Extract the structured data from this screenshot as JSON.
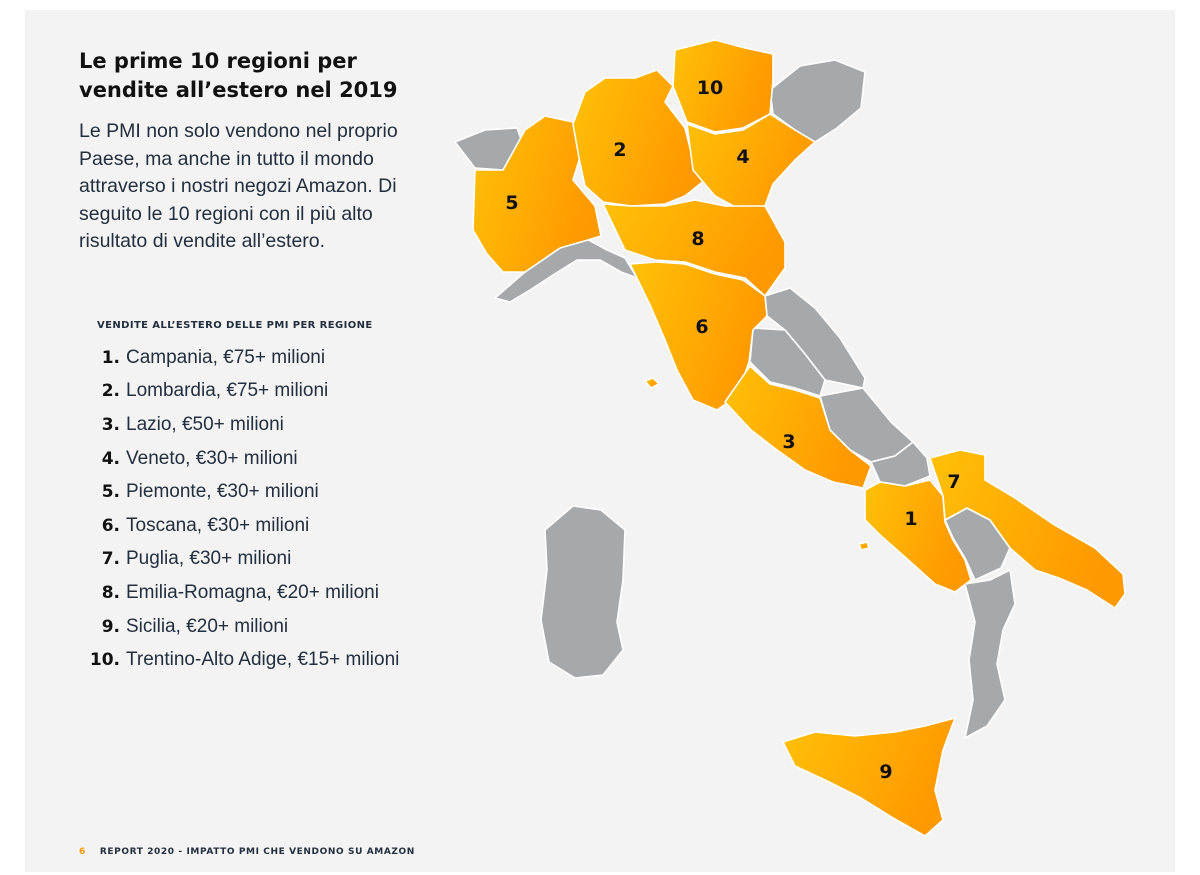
{
  "title_lines": [
    "Le prime 10 regioni per",
    "vendite all’estero nel 2019"
  ],
  "intro_lines": [
    "Le PMI non solo vendono nel proprio",
    "Paese, ma anche in tutto il mondo",
    "attraverso i nostri negozi Amazon. Di",
    "seguito le 10 regioni con il più alto",
    "risultato di vendite all’estero."
  ],
  "list_heading": "VENDITE ALL’ESTERO DELLE PMI PER REGIONE",
  "ranking": [
    {
      "rank": "1.",
      "text": "Campania, €75+ milioni"
    },
    {
      "rank": "2.",
      "text": "Lombardia, €75+ milioni"
    },
    {
      "rank": "3.",
      "text": "Lazio, €50+ milioni"
    },
    {
      "rank": "4.",
      "text": "Veneto, €30+ milioni"
    },
    {
      "rank": "5.",
      "text": "Piemonte, €30+ milioni"
    },
    {
      "rank": "6.",
      "text": "Toscana, €30+ milioni"
    },
    {
      "rank": "7.",
      "text": "Puglia, €30+ milioni"
    },
    {
      "rank": "8.",
      "text": "Emilia-Romagna, €20+ milioni"
    },
    {
      "rank": "9.",
      "text": "Sicilia, €20+ milioni"
    },
    {
      "rank": "10.",
      "text": "Trentino-Alto Adige, €15+ milioni"
    }
  ],
  "map_labels": {
    "campania": "1",
    "lombardia": "2",
    "lazio": "3",
    "veneto": "4",
    "piemonte": "5",
    "toscana": "6",
    "puglia": "7",
    "emilia_romagna": "8",
    "sicilia": "9",
    "trentino": "10"
  },
  "footer": {
    "page_number": "6",
    "text": "REPORT 2020 - IMPATTO PMI CHE VENDONO SU AMAZON"
  },
  "colors": {
    "highlight_light": "#ffc107",
    "highlight_dark": "#ff9900",
    "other_regions": "#a6a9ab",
    "background": "#f2f3f2"
  }
}
